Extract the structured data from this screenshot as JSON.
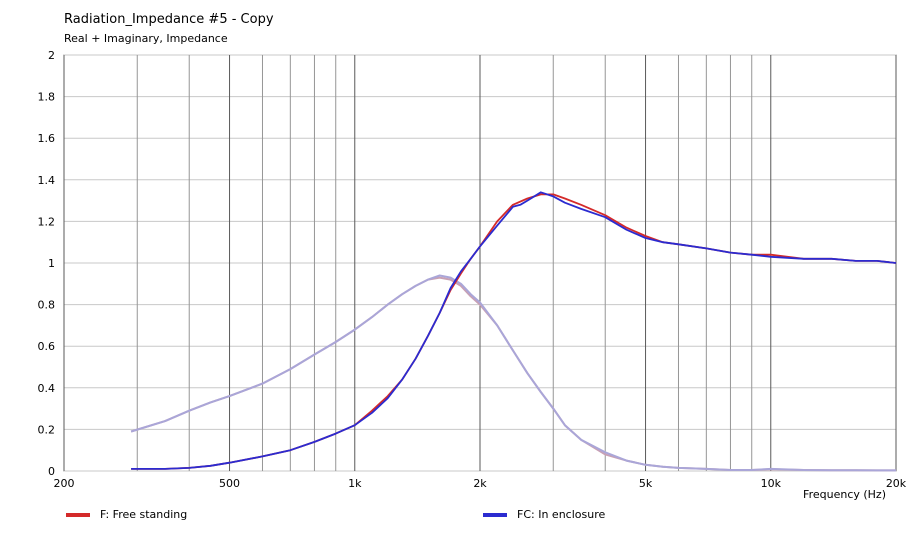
{
  "window": {
    "title": "Radiation_Impedance #5 - Copy",
    "subtitle": "Real + Imaginary, Impedance"
  },
  "legend": [
    {
      "label": "F: Free standing",
      "color": "#d42a2a"
    },
    {
      "label": "FC: In enclosure",
      "color": "#2b2bd0"
    }
  ],
  "chart_data": {
    "type": "line",
    "title": "Radiation_Impedance #5 - Copy",
    "subtitle": "Real + Imaginary, Impedance",
    "xlabel": "Frequency  (Hz)",
    "ylabel": "",
    "xscale": "log",
    "xlim": [
      200,
      20000
    ],
    "ylim": [
      0,
      2
    ],
    "grid": true,
    "x_tick_labels": [
      {
        "value": 200,
        "label": "200"
      },
      {
        "value": 500,
        "label": "500"
      },
      {
        "value": 1000,
        "label": "1k"
      },
      {
        "value": 2000,
        "label": "2k"
      },
      {
        "value": 5000,
        "label": "5k"
      },
      {
        "value": 10000,
        "label": "10k"
      },
      {
        "value": 20000,
        "label": "20k"
      }
    ],
    "x_minor_grid": [
      300,
      400,
      600,
      700,
      800,
      900,
      3000,
      4000,
      6000,
      7000,
      8000,
      9000
    ],
    "y_tick_labels": [
      {
        "value": 0,
        "label": "0"
      },
      {
        "value": 0.2,
        "label": "0.2"
      },
      {
        "value": 0.4,
        "label": "0.4"
      },
      {
        "value": 0.6,
        "label": "0.6"
      },
      {
        "value": 0.8,
        "label": "0.8"
      },
      {
        "value": 1,
        "label": "1"
      },
      {
        "value": 1.2,
        "label": "1.2"
      },
      {
        "value": 1.4,
        "label": "1.4"
      },
      {
        "value": 1.6,
        "label": "1.6"
      },
      {
        "value": 1.8,
        "label": "1.8"
      },
      {
        "value": 2,
        "label": "2"
      }
    ],
    "legend_position": "bottom",
    "series": [
      {
        "name": "F: Free standing",
        "part": "real",
        "color": "#d42a2a",
        "x": [
          290,
          350,
          400,
          450,
          500,
          600,
          700,
          800,
          900,
          1000,
          1100,
          1200,
          1300,
          1400,
          1500,
          1600,
          1700,
          1800,
          1900,
          2000,
          2200,
          2400,
          2600,
          2800,
          3000,
          3200,
          3500,
          4000,
          4500,
          5000,
          5500,
          6000,
          7000,
          8000,
          9000,
          10000,
          12000,
          14000,
          16000,
          18000,
          20000
        ],
        "y": [
          0.01,
          0.01,
          0.015,
          0.025,
          0.04,
          0.07,
          0.1,
          0.14,
          0.18,
          0.22,
          0.29,
          0.36,
          0.44,
          0.54,
          0.65,
          0.76,
          0.87,
          0.95,
          1.02,
          1.08,
          1.2,
          1.28,
          1.31,
          1.33,
          1.33,
          1.31,
          1.28,
          1.23,
          1.17,
          1.13,
          1.1,
          1.09,
          1.07,
          1.05,
          1.04,
          1.04,
          1.02,
          1.02,
          1.01,
          1.01,
          1.0
        ]
      },
      {
        "name": "FC: In enclosure",
        "part": "real",
        "color": "#2b2bd0",
        "x": [
          290,
          350,
          400,
          450,
          500,
          600,
          700,
          800,
          900,
          1000,
          1100,
          1200,
          1300,
          1400,
          1500,
          1600,
          1700,
          1800,
          1900,
          2000,
          2200,
          2400,
          2500,
          2600,
          2800,
          3000,
          3200,
          3500,
          4000,
          4500,
          5000,
          5500,
          6000,
          7000,
          8000,
          9000,
          10000,
          12000,
          14000,
          16000,
          18000,
          20000
        ],
        "y": [
          0.01,
          0.01,
          0.015,
          0.025,
          0.04,
          0.07,
          0.1,
          0.14,
          0.18,
          0.22,
          0.28,
          0.35,
          0.44,
          0.54,
          0.65,
          0.76,
          0.88,
          0.96,
          1.02,
          1.08,
          1.18,
          1.27,
          1.28,
          1.3,
          1.34,
          1.32,
          1.29,
          1.26,
          1.22,
          1.16,
          1.12,
          1.1,
          1.09,
          1.07,
          1.05,
          1.04,
          1.03,
          1.02,
          1.02,
          1.01,
          1.01,
          1.0
        ]
      },
      {
        "name": "F: Free standing",
        "part": "imaginary",
        "color": "#c8a0b4",
        "x": [
          290,
          350,
          400,
          450,
          500,
          600,
          700,
          800,
          900,
          1000,
          1100,
          1200,
          1300,
          1400,
          1500,
          1600,
          1700,
          1800,
          1900,
          2000,
          2200,
          2400,
          2600,
          2800,
          3000,
          3200,
          3500,
          4000,
          4500,
          5000,
          5500,
          6000,
          7000,
          8000,
          9000,
          10000,
          12000,
          14000,
          16000,
          18000,
          20000
        ],
        "y": [
          0.19,
          0.24,
          0.29,
          0.33,
          0.36,
          0.42,
          0.49,
          0.56,
          0.62,
          0.68,
          0.74,
          0.8,
          0.85,
          0.89,
          0.92,
          0.93,
          0.92,
          0.89,
          0.84,
          0.8,
          0.7,
          0.58,
          0.47,
          0.38,
          0.3,
          0.22,
          0.15,
          0.08,
          0.05,
          0.03,
          0.02,
          0.015,
          0.01,
          0.005,
          0.005,
          0.008,
          0.005,
          0.004,
          0.004,
          0.003,
          0.003
        ]
      },
      {
        "name": "FC: In enclosure",
        "part": "imaginary",
        "color": "#aaa6d8",
        "x": [
          290,
          350,
          400,
          450,
          500,
          600,
          700,
          800,
          900,
          1000,
          1100,
          1200,
          1300,
          1400,
          1500,
          1600,
          1700,
          1800,
          1900,
          2000,
          2200,
          2400,
          2600,
          2800,
          3000,
          3200,
          3500,
          4000,
          4500,
          5000,
          5500,
          6000,
          7000,
          8000,
          9000,
          10000,
          12000,
          14000,
          16000,
          18000,
          20000
        ],
        "y": [
          0.19,
          0.24,
          0.29,
          0.33,
          0.36,
          0.42,
          0.49,
          0.56,
          0.62,
          0.68,
          0.74,
          0.8,
          0.85,
          0.89,
          0.92,
          0.94,
          0.93,
          0.9,
          0.85,
          0.81,
          0.7,
          0.58,
          0.47,
          0.38,
          0.3,
          0.22,
          0.15,
          0.09,
          0.05,
          0.03,
          0.02,
          0.015,
          0.01,
          0.005,
          0.005,
          0.01,
          0.005,
          0.004,
          0.004,
          0.003,
          0.003
        ]
      }
    ]
  }
}
